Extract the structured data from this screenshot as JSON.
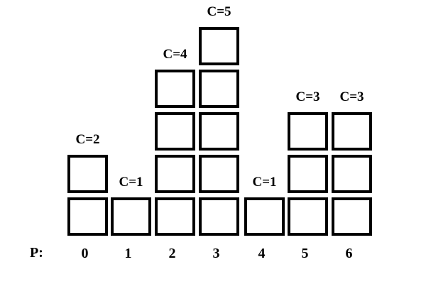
{
  "axis_label": "P:",
  "columns": [
    {
      "p": "0",
      "count": 2,
      "label": "C=2"
    },
    {
      "p": "1",
      "count": 1,
      "label": "C=1"
    },
    {
      "p": "2",
      "count": 4,
      "label": "C=4"
    },
    {
      "p": "3",
      "count": 5,
      "label": "C=5"
    },
    {
      "p": "4",
      "count": 1,
      "label": "C=1"
    },
    {
      "p": "5",
      "count": 3,
      "label": "C=3"
    },
    {
      "p": "6",
      "count": 3,
      "label": "C=3"
    }
  ]
}
